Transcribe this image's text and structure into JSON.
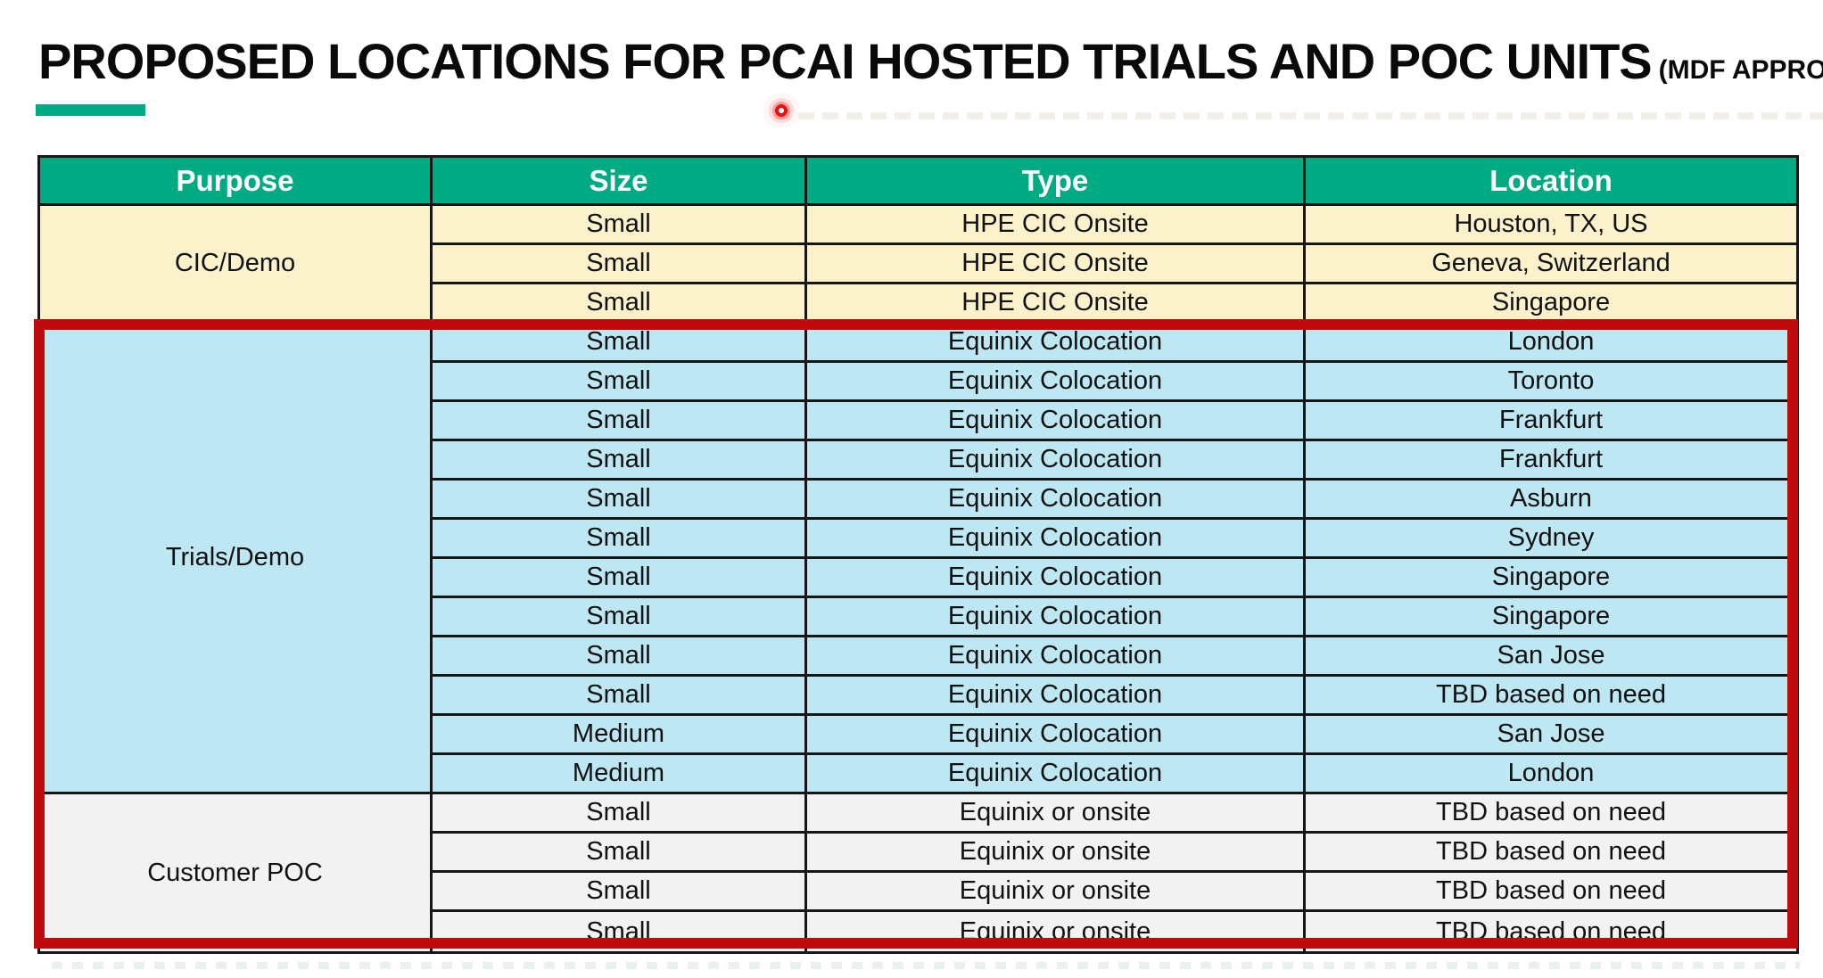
{
  "title": {
    "main": "PROPOSED LOCATIONS FOR PCAI HOSTED TRIALS AND POC UNITS",
    "suffix": "(MDF APPROVED)"
  },
  "accents": {
    "underline_color": "#00AB84",
    "laser_dot_color": "#EC1111",
    "highlight_box_color": "#BE0B0C",
    "grid_line_color": "#161616"
  },
  "table": {
    "header_bg": "#00AB84",
    "header_text_color": "#FFFFFF",
    "headers": [
      "Purpose",
      "Size",
      "Type",
      "Location"
    ],
    "sections": [
      {
        "purpose": "CIC/Demo",
        "bg": "#FBF1CB",
        "highlighted": false,
        "rows": [
          {
            "size": "Small",
            "type": "HPE CIC Onsite",
            "location": "Houston, TX, US"
          },
          {
            "size": "Small",
            "type": "HPE CIC Onsite",
            "location": "Geneva, Switzerland"
          },
          {
            "size": "Small",
            "type": "HPE CIC Onsite",
            "location": "Singapore"
          }
        ]
      },
      {
        "purpose": "Trials/Demo",
        "bg": "#BDE7F2",
        "highlighted": true,
        "rows": [
          {
            "size": "Small",
            "type": "Equinix Colocation",
            "location": "London"
          },
          {
            "size": "Small",
            "type": "Equinix Colocation",
            "location": "Toronto"
          },
          {
            "size": "Small",
            "type": "Equinix Colocation",
            "location": "Frankfurt"
          },
          {
            "size": "Small",
            "type": "Equinix Colocation",
            "location": "Frankfurt"
          },
          {
            "size": "Small",
            "type": "Equinix Colocation",
            "location": "Asburn"
          },
          {
            "size": "Small",
            "type": "Equinix Colocation",
            "location": "Sydney"
          },
          {
            "size": "Small",
            "type": "Equinix Colocation",
            "location": "Singapore"
          },
          {
            "size": "Small",
            "type": "Equinix Colocation",
            "location": "Singapore"
          },
          {
            "size": "Small",
            "type": "Equinix Colocation",
            "location": "San Jose"
          },
          {
            "size": "Small",
            "type": "Equinix Colocation",
            "location": "TBD based on need"
          },
          {
            "size": "Medium",
            "type": "Equinix Colocation",
            "location": "San Jose"
          },
          {
            "size": "Medium",
            "type": "Equinix Colocation",
            "location": "London"
          }
        ]
      },
      {
        "purpose": "Customer POC",
        "bg": "#F2F2F2",
        "highlighted": true,
        "rows": [
          {
            "size": "Small",
            "type": "Equinix or onsite",
            "location": "TBD based on need"
          },
          {
            "size": "Small",
            "type": "Equinix or onsite",
            "location": "TBD based on need"
          },
          {
            "size": "Small",
            "type": "Equinix or onsite",
            "location": "TBD based on need"
          },
          {
            "size": "Small",
            "type": "Equinix or onsite",
            "location": "TBD based on need"
          }
        ]
      }
    ]
  }
}
